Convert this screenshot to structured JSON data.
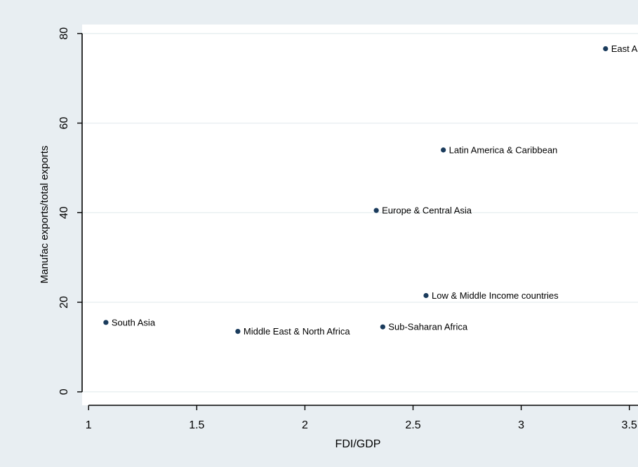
{
  "chart_data": {
    "type": "scatter",
    "xlabel": "FDI/GDP",
    "ylabel": "Manufac exports/total exports",
    "xlim": [
      0.97,
      3.54
    ],
    "ylim": [
      -3,
      82
    ],
    "x_ticks": [
      1,
      1.5,
      2,
      2.5,
      3,
      3.5
    ],
    "x_tick_labels": [
      "1",
      "1.5",
      "2",
      "2.5",
      "3",
      "3.5"
    ],
    "y_ticks": [
      0,
      20,
      40,
      60,
      80
    ],
    "y_tick_labels": [
      "0",
      "20",
      "40",
      "60",
      "80"
    ],
    "grid": true,
    "legend": "none",
    "points": [
      {
        "label": "East Asia & Pacific",
        "x": 3.39,
        "y": 76.6
      },
      {
        "label": "Latin America & Caribbean",
        "x": 2.64,
        "y": 54.0
      },
      {
        "label": "Europe & Central Asia",
        "x": 2.33,
        "y": 40.5
      },
      {
        "label": "Low & Middle Income countries",
        "x": 2.56,
        "y": 21.5
      },
      {
        "label": "South Asia",
        "x": 1.08,
        "y": 15.5
      },
      {
        "label": "Sub-Saharan Africa",
        "x": 2.36,
        "y": 14.5
      },
      {
        "label": "Middle East & North Africa",
        "x": 1.69,
        "y": 13.5
      }
    ]
  },
  "colors": {
    "outer_background": "#e8eef2",
    "plot_background": "#ffffff",
    "grid": "#e3ebee",
    "axis": "#000000",
    "marker": "#1a3b5c",
    "text": "#000000"
  }
}
